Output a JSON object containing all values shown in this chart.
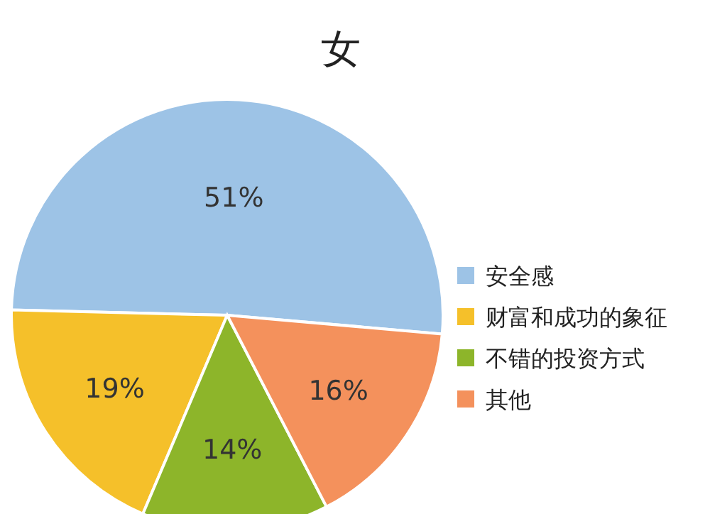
{
  "chart_data": {
    "type": "pie",
    "title": "女",
    "categories": [
      "安全感",
      "财富和成功的象征",
      "不错的投资方式",
      "其他"
    ],
    "values": [
      51,
      19,
      14,
      16
    ],
    "value_labels": [
      "51%",
      "19%",
      "14%",
      "16%"
    ],
    "colors": [
      "#9dc3e6",
      "#f5c02a",
      "#8db52a",
      "#f4915c"
    ],
    "legend": "right"
  }
}
